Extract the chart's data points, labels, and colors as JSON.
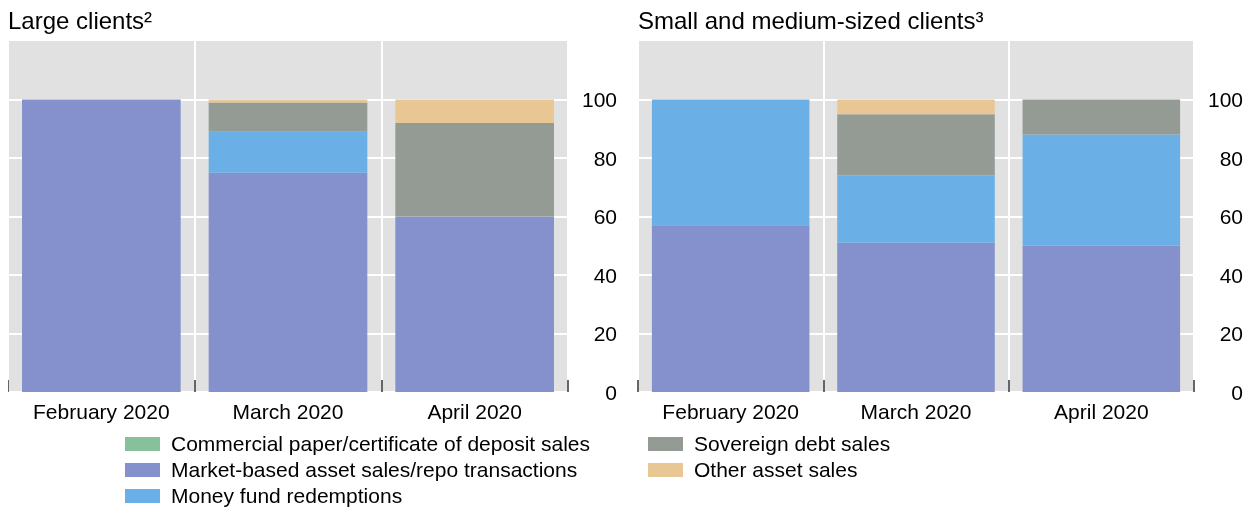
{
  "chart_data": [
    {
      "type": "bar",
      "title": "Large clients²",
      "categories": [
        "February 2020",
        "March 2020",
        "April 2020"
      ],
      "stacked": true,
      "ylim": [
        0,
        120
      ],
      "yticks": [
        0,
        20,
        40,
        60,
        80,
        100
      ],
      "grid": true,
      "legend": "bottom",
      "series": [
        {
          "name": "Commercial paper/certificate of deposit sales",
          "color": "#86c19b",
          "values": [
            null,
            null,
            null
          ]
        },
        {
          "name": "Market-based asset sales/repo transactions",
          "color": "#8591cc",
          "values": [
            100,
            75,
            60
          ]
        },
        {
          "name": "Money fund redemptions",
          "color": "#6aafe6",
          "values": [
            null,
            14,
            null
          ]
        },
        {
          "name": "Sovereign debt sales",
          "color": "#939b94",
          "values": [
            null,
            10,
            32
          ]
        },
        {
          "name": "Other asset sales",
          "color": "#e8c795",
          "values": [
            null,
            1,
            8
          ]
        }
      ]
    },
    {
      "type": "bar",
      "title": "Small and medium-sized clients³",
      "categories": [
        "February 2020",
        "March 2020",
        "April 2020"
      ],
      "stacked": true,
      "ylim": [
        0,
        120
      ],
      "yticks": [
        0,
        20,
        40,
        60,
        80,
        100
      ],
      "grid": true,
      "legend": "bottom",
      "series": [
        {
          "name": "Market-based asset sales/repo transactions",
          "color": "#8591cc",
          "values": [
            57,
            51,
            50
          ]
        },
        {
          "name": "Money fund redemptions",
          "color": "#6aafe6",
          "values": [
            43,
            23,
            38
          ]
        },
        {
          "name": "Sovereign debt sales",
          "color": "#939b94",
          "values": [
            null,
            21,
            12
          ]
        },
        {
          "name": "Other asset sales",
          "color": "#e8c795",
          "values": [
            null,
            5,
            null
          ]
        }
      ]
    }
  ]
}
